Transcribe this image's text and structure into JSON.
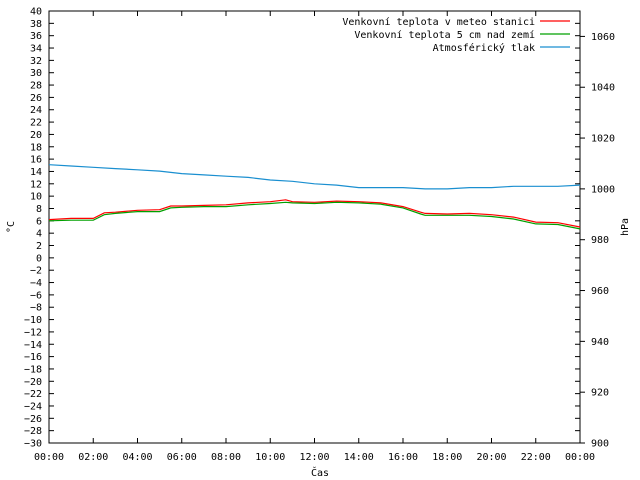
{
  "chart_data": {
    "type": "line",
    "xlabel": "Čas",
    "ylabel": "°C",
    "y2label": "hPa",
    "ylim": [
      -30,
      40
    ],
    "y2lim": [
      900,
      1070
    ],
    "xlim": [
      0,
      24
    ],
    "x_ticks": [
      "00:00",
      "02:00",
      "04:00",
      "06:00",
      "08:00",
      "10:00",
      "12:00",
      "14:00",
      "16:00",
      "18:00",
      "20:00",
      "22:00",
      "00:00"
    ],
    "y_ticks": [
      40,
      38,
      36,
      34,
      32,
      30,
      28,
      26,
      24,
      22,
      20,
      18,
      16,
      14,
      12,
      10,
      8,
      6,
      4,
      2,
      0,
      -2,
      -4,
      -6,
      -8,
      -10,
      -12,
      -14,
      -16,
      -18,
      -20,
      -22,
      -24,
      -26,
      -28,
      -30
    ],
    "y_tick_labels": [
      "40",
      "38",
      "36",
      "34",
      "32",
      "30",
      "28",
      "26",
      "24",
      "22",
      "20",
      "18",
      "16",
      "14",
      "12",
      "10",
      "8",
      "6",
      "4",
      "2",
      "0",
      "−2",
      "−4",
      "−6",
      "−8",
      "−10",
      "−12",
      "−14",
      "−16",
      "−18",
      "−20",
      "−22",
      "−24",
      "−26",
      "−28",
      "−30"
    ],
    "y2_ticks": [
      1060,
      1040,
      1020,
      1000,
      980,
      960,
      940,
      920,
      900
    ],
    "y2_tick_labels": [
      "1060",
      "1040",
      "1020",
      "1000",
      "980",
      "960",
      "940",
      "920",
      "900"
    ],
    "grid": false,
    "legend_position": "top-right",
    "series": [
      {
        "name": "Venkovní teplota v meteo stanici",
        "color": "#ff0000",
        "axis": "left",
        "x": [
          0,
          1,
          2,
          2.5,
          3,
          4,
          5,
          5.5,
          6,
          7,
          8,
          9,
          10,
          10.7,
          11,
          12,
          13,
          14,
          15,
          16,
          16.8,
          17,
          18,
          19,
          20,
          21,
          22,
          23,
          24
        ],
        "y": [
          6.2,
          6.4,
          6.4,
          7.3,
          7.4,
          7.7,
          7.8,
          8.4,
          8.4,
          8.5,
          8.6,
          8.9,
          9.1,
          9.4,
          9.1,
          9.0,
          9.2,
          9.1,
          8.9,
          8.3,
          7.4,
          7.2,
          7.1,
          7.2,
          7.0,
          6.6,
          5.8,
          5.7,
          5.0
        ]
      },
      {
        "name": "Venkovní teplota 5 cm nad zemí",
        "color": "#00a000",
        "axis": "left",
        "x": [
          0,
          1,
          2,
          2.5,
          3,
          4,
          5,
          5.5,
          6,
          7,
          8,
          9,
          10,
          10.7,
          11,
          12,
          13,
          14,
          15,
          16,
          16.8,
          17,
          18,
          19,
          20,
          21,
          22,
          23,
          24
        ],
        "y": [
          6.0,
          6.1,
          6.1,
          7.0,
          7.2,
          7.5,
          7.5,
          8.1,
          8.2,
          8.3,
          8.3,
          8.6,
          8.8,
          9.0,
          8.9,
          8.8,
          9.0,
          8.9,
          8.7,
          8.1,
          7.1,
          6.9,
          6.9,
          6.9,
          6.7,
          6.3,
          5.5,
          5.4,
          4.7
        ]
      },
      {
        "name": "Atmosférický tlak",
        "color": "#1a8fd0",
        "axis": "right",
        "x": [
          0,
          1,
          2,
          3,
          4,
          5,
          6,
          7,
          8,
          9,
          10,
          11,
          12,
          13,
          14,
          15,
          16,
          17,
          18,
          19,
          20,
          21,
          22,
          23,
          24
        ],
        "y": [
          1009.5,
          1009.0,
          1008.5,
          1008.0,
          1007.5,
          1007.0,
          1006.0,
          1005.5,
          1005.0,
          1004.5,
          1003.5,
          1003.0,
          1002.0,
          1001.5,
          1000.5,
          1000.5,
          1000.5,
          1000.0,
          1000.0,
          1000.5,
          1000.5,
          1001.0,
          1001.0,
          1001.0,
          1001.5
        ]
      }
    ]
  }
}
